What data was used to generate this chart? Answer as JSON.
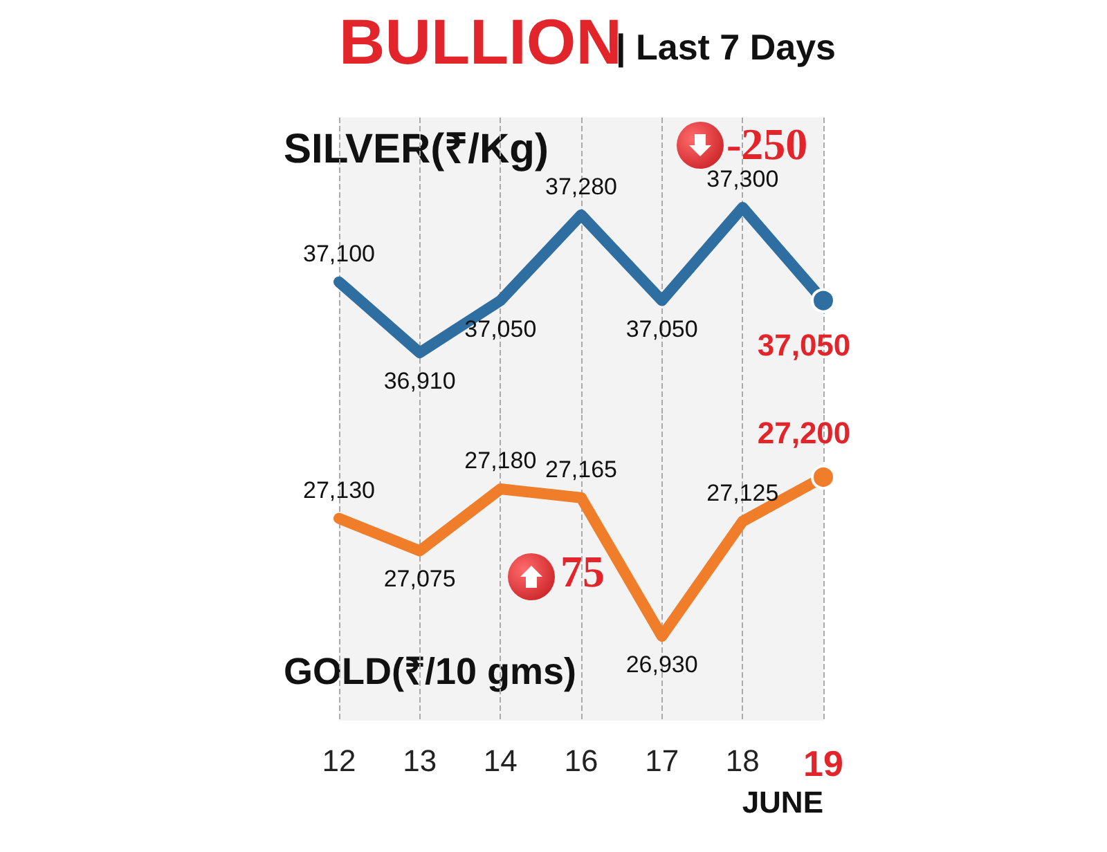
{
  "chart_data": [
    {
      "type": "line",
      "title": "BULLION",
      "subtitle": "| Last 7 Days",
      "categories": [
        "12",
        "13",
        "14",
        "16",
        "17",
        "18",
        "19"
      ],
      "tick_labels": false,
      "series": [
        {
          "name": "SILVER(₹/Kg)",
          "color": "#2f6ea0",
          "values": [
            37100,
            36910,
            37050,
            37280,
            37050,
            37300,
            37050
          ],
          "value_labels": [
            "37,100",
            "36,910",
            "37,050",
            "37,280",
            "37,050",
            "37,300",
            "37,050"
          ]
        }
      ],
      "grid": "x",
      "annotations": [
        "-250"
      ]
    },
    {
      "type": "line",
      "xlabel": "JUNE",
      "categories": [
        "12",
        "13",
        "14",
        "16",
        "17",
        "18",
        "19"
      ],
      "series": [
        {
          "name": "GOLD(₹/10 gms)",
          "color": "#f07d2a",
          "values": [
            27130,
            27075,
            27180,
            27165,
            26930,
            27125,
            27200
          ],
          "value_labels": [
            "27,130",
            "27,075",
            "27,180",
            "27,165",
            "26,930",
            "27,125",
            "27,200"
          ]
        }
      ],
      "grid": "x",
      "annotations": [
        "75"
      ]
    }
  ]
}
